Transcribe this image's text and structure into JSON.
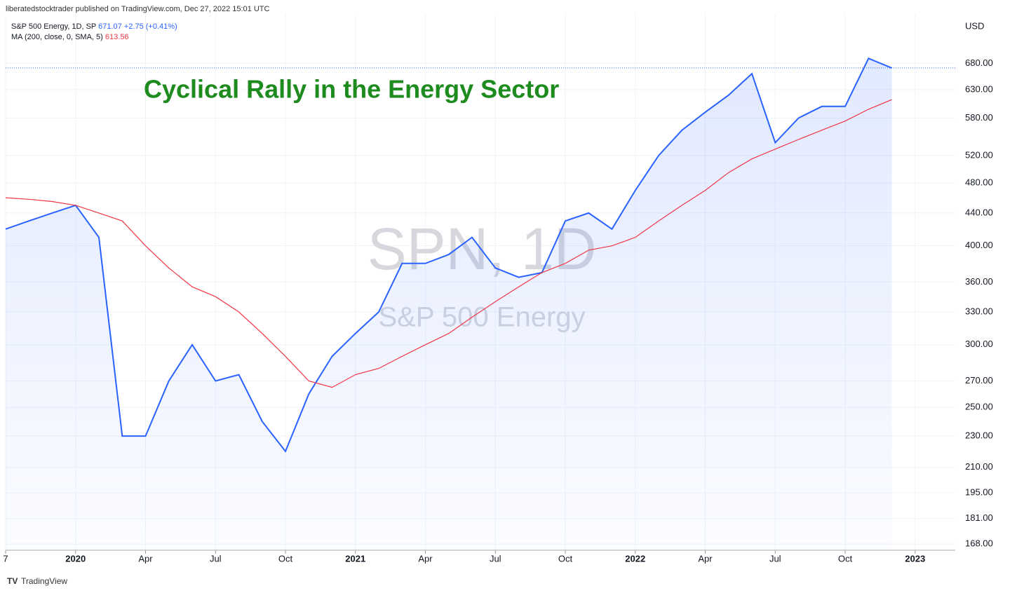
{
  "header": "liberatedstocktrader published on TradingView.com, Dec 27, 2022 15:01 UTC",
  "footer": "TradingView",
  "chart_data": {
    "type": "line",
    "title": "Cyclical Rally in the Energy Sector",
    "watermark": "SPN, 1D",
    "watermark_subtitle": "S&P 500 Energy",
    "y_unit": "USD",
    "log_scale": true,
    "grid": true,
    "x": [
      "2019-10",
      "2019-11",
      "2019-12",
      "2020-01",
      "2020-02",
      "2020-03",
      "2020-04",
      "2020-05",
      "2020-06",
      "2020-07",
      "2020-08",
      "2020-09",
      "2020-10",
      "2020-11",
      "2020-12",
      "2021-01",
      "2021-02",
      "2021-03",
      "2021-04",
      "2021-05",
      "2021-06",
      "2021-07",
      "2021-08",
      "2021-09",
      "2021-10",
      "2021-11",
      "2021-12",
      "2022-01",
      "2022-02",
      "2022-03",
      "2022-04",
      "2022-05",
      "2022-06",
      "2022-07",
      "2022-08",
      "2022-09",
      "2022-10",
      "2022-11",
      "2022-12"
    ],
    "series": [
      {
        "name": "S&P 500 Energy, 1D, SP",
        "color": "#2962ff",
        "last": 671.07,
        "change": "+2.75 (+0.41%)",
        "values": [
          420,
          430,
          440,
          450,
          410,
          230,
          230,
          270,
          300,
          270,
          275,
          240,
          220,
          260,
          290,
          310,
          330,
          380,
          380,
          390,
          410,
          375,
          365,
          370,
          430,
          440,
          420,
          470,
          520,
          560,
          590,
          620,
          660,
          540,
          580,
          600,
          600,
          690,
          671
        ]
      },
      {
        "name": "MA (200, close, 0, SMA, 5)",
        "color": "#f23645",
        "last": 613.56,
        "values": [
          460,
          458,
          455,
          450,
          440,
          430,
          400,
          375,
          355,
          345,
          330,
          310,
          290,
          270,
          265,
          275,
          280,
          290,
          300,
          310,
          325,
          340,
          355,
          370,
          380,
          395,
          400,
          410,
          430,
          450,
          470,
          495,
          515,
          530,
          545,
          560,
          575,
          595,
          612
        ]
      }
    ],
    "xlim": [
      "2019-10",
      "2023-02"
    ],
    "xticks": [
      {
        "value": "2019-10",
        "label": "7"
      },
      {
        "value": "2020-01",
        "label": "2020"
      },
      {
        "value": "2020-04",
        "label": "Apr"
      },
      {
        "value": "2020-07",
        "label": "Jul"
      },
      {
        "value": "2020-10",
        "label": "Oct"
      },
      {
        "value": "2021-01",
        "label": "2021"
      },
      {
        "value": "2021-04",
        "label": "Apr"
      },
      {
        "value": "2021-07",
        "label": "Jul"
      },
      {
        "value": "2021-10",
        "label": "Oct"
      },
      {
        "value": "2022-01",
        "label": "2022"
      },
      {
        "value": "2022-04",
        "label": "Apr"
      },
      {
        "value": "2022-07",
        "label": "Jul"
      },
      {
        "value": "2022-10",
        "label": "Oct"
      },
      {
        "value": "2023-01",
        "label": "2023"
      }
    ],
    "ylim": [
      165,
      785
    ],
    "yticks": [
      {
        "value": 168,
        "label": "168.00"
      },
      {
        "value": 181,
        "label": "181.00"
      },
      {
        "value": 195,
        "label": "195.00"
      },
      {
        "value": 210,
        "label": "210.00"
      },
      {
        "value": 230,
        "label": "230.00"
      },
      {
        "value": 250,
        "label": "250.00"
      },
      {
        "value": 270,
        "label": "270.00"
      },
      {
        "value": 300,
        "label": "300.00"
      },
      {
        "value": 330,
        "label": "330.00"
      },
      {
        "value": 360,
        "label": "360.00"
      },
      {
        "value": 400,
        "label": "400.00"
      },
      {
        "value": 440,
        "label": "440.00"
      },
      {
        "value": 480,
        "label": "480.00"
      },
      {
        "value": 520,
        "label": "520.00"
      },
      {
        "value": 580,
        "label": "580.00"
      },
      {
        "value": 630,
        "label": "630.00"
      },
      {
        "value": 680,
        "label": "680.00"
      }
    ]
  }
}
